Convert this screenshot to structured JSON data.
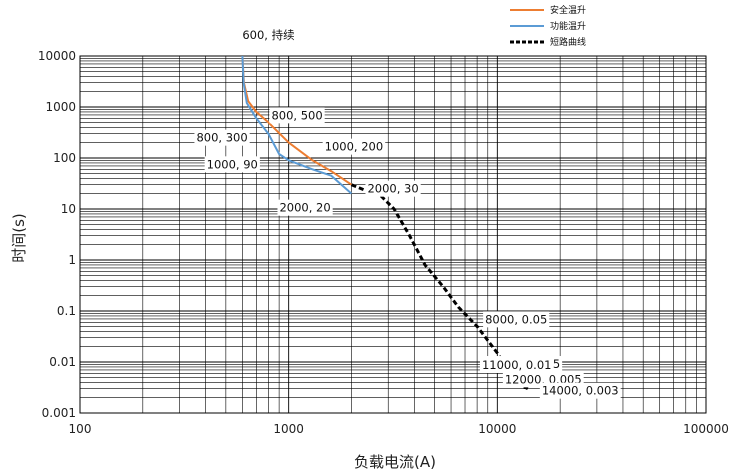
{
  "chart_data": {
    "type": "line",
    "xscale": "log",
    "yscale": "log",
    "xlim": [
      100,
      100000
    ],
    "ylim": [
      0.001,
      10000
    ],
    "xlabel": "负载电流(A)",
    "ylabel": "时间(s)",
    "x_ticks": [
      "100",
      "1000",
      "10000",
      "100000"
    ],
    "y_ticks": [
      "0.001",
      "0.01",
      "0.1",
      "1",
      "10",
      "100",
      "1000",
      "10000"
    ],
    "grid": true,
    "legend_position": "top-right",
    "series": [
      {
        "name": "安全温升",
        "color": "#ed7d31",
        "style": "solid",
        "points": [
          [
            600,
            10000
          ],
          [
            610,
            3000
          ],
          [
            640,
            1300
          ],
          [
            700,
            800
          ],
          [
            800,
            500
          ],
          [
            1000,
            200
          ],
          [
            1300,
            90
          ],
          [
            1600,
            55
          ],
          [
            2000,
            30
          ]
        ]
      },
      {
        "name": "功能温升",
        "color": "#5b9bd5",
        "style": "solid",
        "points": [
          [
            600,
            10000
          ],
          [
            608,
            3000
          ],
          [
            630,
            1200
          ],
          [
            700,
            600
          ],
          [
            800,
            300
          ],
          [
            900,
            120
          ],
          [
            1000,
            90
          ],
          [
            1300,
            60
          ],
          [
            1600,
            45
          ],
          [
            2000,
            20
          ]
        ]
      },
      {
        "name": "短路曲线",
        "color": "#000000",
        "style": "dashed",
        "points": [
          [
            2000,
            30
          ],
          [
            2400,
            22
          ],
          [
            2700,
            20
          ],
          [
            3200,
            10
          ],
          [
            3800,
            3
          ],
          [
            4500,
            0.8
          ],
          [
            5500,
            0.3
          ],
          [
            6500,
            0.12
          ],
          [
            8000,
            0.05
          ],
          [
            10000,
            0.015
          ],
          [
            11000,
            0.008
          ],
          [
            12000,
            0.005
          ],
          [
            13000,
            0.0035
          ],
          [
            14000,
            0.003
          ]
        ]
      }
    ],
    "annotations": [
      {
        "text": "600, 持续",
        "x": 600,
        "y": 10000
      },
      {
        "text": "800, 500",
        "x": 800,
        "y": 500
      },
      {
        "text": "800, 300",
        "x": 800,
        "y": 300
      },
      {
        "text": "1000, 200",
        "x": 1000,
        "y": 200
      },
      {
        "text": "1000, 90",
        "x": 1000,
        "y": 90
      },
      {
        "text": "2000, 30",
        "x": 2000,
        "y": 30
      },
      {
        "text": "2000, 20",
        "x": 2000,
        "y": 20
      },
      {
        "text": "8000, 0.05",
        "x": 8000,
        "y": 0.05
      },
      {
        "text": "10000, 0.015",
        "x": 10000,
        "y": 0.015
      },
      {
        "text": "11000, 0.01",
        "x": 11000,
        "y": 0.01
      },
      {
        "text": "12000, 0.005",
        "x": 12000,
        "y": 0.005
      },
      {
        "text": "14000, 0.003",
        "x": 14000,
        "y": 0.003
      }
    ]
  }
}
